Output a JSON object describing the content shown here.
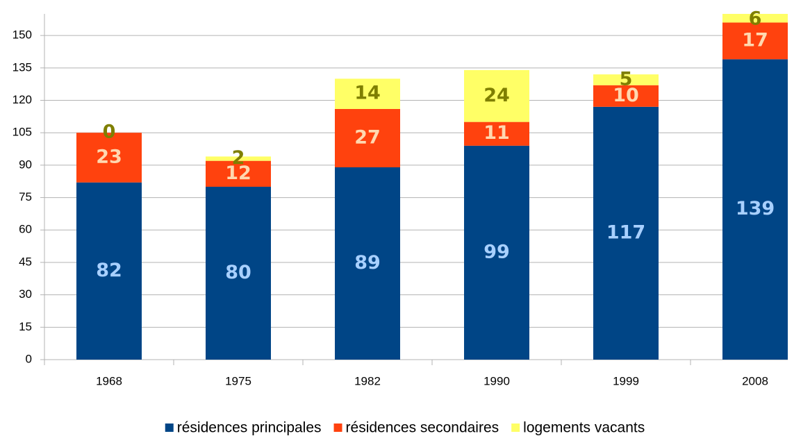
{
  "chart_data": {
    "type": "bar",
    "stacked": true,
    "categories": [
      "1968",
      "1975",
      "1982",
      "1990",
      "1999",
      "2008"
    ],
    "series": [
      {
        "name": "résidences principales",
        "color": "#004586",
        "label_color": "#a8d0ff",
        "values": [
          82,
          80,
          89,
          99,
          117,
          139
        ]
      },
      {
        "name": "résidences secondaires",
        "color": "#ff420e",
        "label_color": "#ffd8b0",
        "values": [
          23,
          12,
          27,
          11,
          10,
          17
        ]
      },
      {
        "name": "logements vacants",
        "color": "#ffff66",
        "label_color": "#7f7f00",
        "values": [
          0,
          2,
          14,
          24,
          5,
          6
        ]
      }
    ],
    "ylim": [
      0,
      160
    ],
    "yticks": [
      0,
      15,
      30,
      45,
      60,
      75,
      90,
      105,
      120,
      135,
      150
    ],
    "grid": true,
    "legend": "bottom"
  }
}
